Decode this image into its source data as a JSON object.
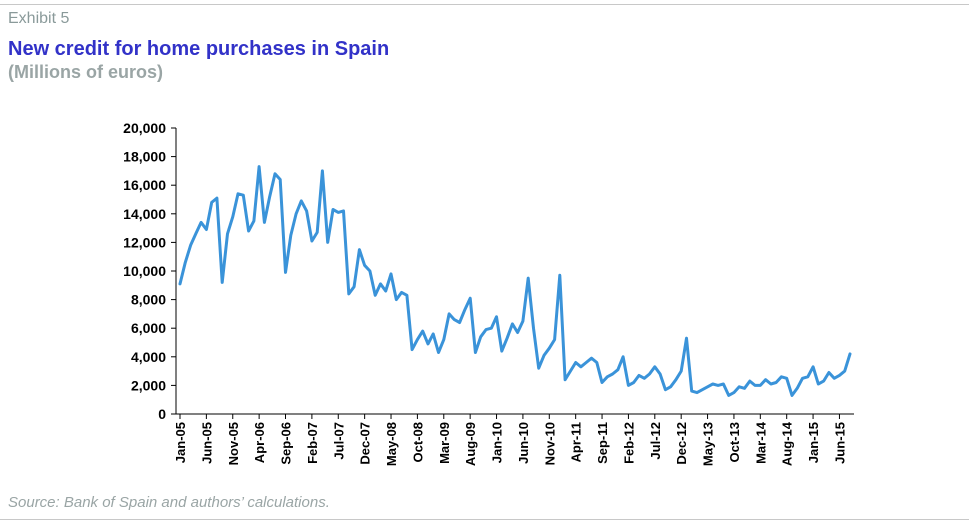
{
  "header": {
    "exhibit": "Exhibit 5",
    "title": "New credit for home purchases in Spain",
    "subtitle": "(Millions of euros)"
  },
  "footer": {
    "source": "Source: Bank of Spain and authors’ calculations."
  },
  "colors": {
    "line": "#3a93d9",
    "title": "#3232c8",
    "muted": "#9aa5a5"
  },
  "chart_data": {
    "type": "line",
    "title": "New credit for home purchases in Spain",
    "subtitle": "(Millions of euros)",
    "xlabel": "",
    "ylabel": "",
    "ylim": [
      0,
      20000
    ],
    "yticks": [
      "0",
      "2,000",
      "4,000",
      "6,000",
      "8,000",
      "10,000",
      "12,000",
      "14,000",
      "16,000",
      "18,000",
      "20,000"
    ],
    "xtick_labels": [
      "Jan-05",
      "Jun-05",
      "Nov-05",
      "Apr-06",
      "Sep-06",
      "Feb-07",
      "Jul-07",
      "Dec-07",
      "May-08",
      "Oct-08",
      "Mar-09",
      "Aug-09",
      "Jan-10",
      "Jun-10",
      "Nov-10",
      "Apr-11",
      "Sep-11",
      "Feb-12",
      "Jul-12",
      "Dec-12",
      "May-13",
      "Oct-13",
      "Mar-14",
      "Aug-14",
      "Jan-15",
      "Jun-15"
    ],
    "grid": false,
    "legend": "none",
    "x_start": "Jan-05",
    "x_end": "Jun-15",
    "series": [
      {
        "values": [
          9100,
          10600,
          11800,
          12600,
          13400,
          12900,
          14800,
          15100,
          9200,
          12600,
          13800,
          15400,
          15300,
          12800,
          13500,
          17300,
          13400,
          15200,
          16800,
          16400,
          9900,
          12500,
          14000,
          14900,
          14200,
          12100,
          12700,
          17000,
          12000,
          14300,
          14100,
          14200,
          8400,
          8900,
          11500,
          10400,
          10000,
          8300,
          9100,
          8600,
          9800,
          8000,
          8500,
          8300,
          4500,
          5200,
          5800,
          4900,
          5600,
          4300,
          5200,
          7000,
          6600,
          6400,
          7300,
          8100,
          4300,
          5400,
          5900,
          6000,
          6800,
          4400,
          5300,
          6300,
          5700,
          6500,
          9500,
          6000,
          3200,
          4100,
          4600,
          5200,
          9700,
          2400,
          3000,
          3600,
          3300,
          3600,
          3900,
          3600,
          2200,
          2600,
          2800,
          3100,
          4000,
          2000,
          2200,
          2700,
          2500,
          2800,
          3300,
          2800,
          1700,
          1900,
          2400,
          3000,
          5300,
          1600,
          1500,
          1700,
          1900,
          2100,
          2000,
          2100,
          1300,
          1500,
          1900,
          1800,
          2300,
          2000,
          2000,
          2400,
          2100,
          2200,
          2600,
          2500,
          1300,
          1800,
          2500,
          2600,
          3300,
          2100,
          2300,
          2900,
          2500,
          2700,
          3000,
          4200
        ]
      }
    ]
  }
}
